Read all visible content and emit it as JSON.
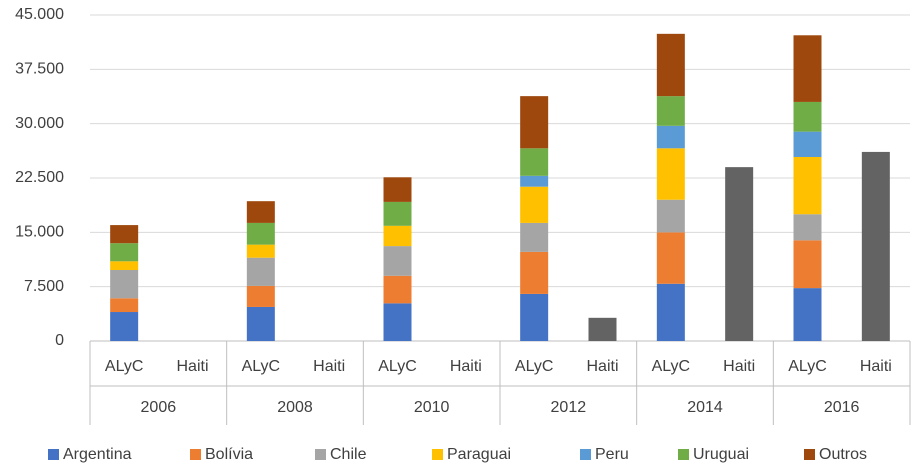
{
  "chart_data": {
    "type": "stacked_bar",
    "categories": [
      "ALyC",
      "Haiti",
      "ALyC",
      "Haiti",
      "ALyC",
      "Haiti",
      "ALyC",
      "Haiti",
      "ALyC",
      "Haiti",
      "ALyC",
      "Haiti"
    ],
    "groups": [
      "2006",
      "2008",
      "2010",
      "2012",
      "2014",
      "2016"
    ],
    "series": [
      {
        "name": "Argentina",
        "color": "#4472c4",
        "values": [
          4000,
          null,
          4700,
          null,
          5200,
          null,
          6500,
          null,
          7900,
          null,
          7300,
          null
        ]
      },
      {
        "name": "Bolívia",
        "color": "#ed7d31",
        "values": [
          1900,
          null,
          2900,
          null,
          3800,
          null,
          5800,
          null,
          7100,
          null,
          6600,
          null
        ]
      },
      {
        "name": "Chile",
        "color": "#a5a5a5",
        "values": [
          3900,
          null,
          3900,
          null,
          4100,
          null,
          4000,
          null,
          4500,
          null,
          3600,
          null
        ]
      },
      {
        "name": "Paraguai",
        "color": "#ffc000",
        "values": [
          1200,
          null,
          1800,
          null,
          2800,
          null,
          5000,
          null,
          7100,
          null,
          7900,
          null
        ]
      },
      {
        "name": "Peru",
        "color": "#5b9bd5",
        "values": [
          0,
          null,
          0,
          null,
          0,
          null,
          1500,
          null,
          3100,
          null,
          3500,
          null
        ]
      },
      {
        "name": "Uruguai",
        "color": "#70ad47",
        "values": [
          2500,
          null,
          3000,
          null,
          3300,
          null,
          3800,
          null,
          4100,
          null,
          4100,
          null
        ]
      },
      {
        "name": "Outros",
        "color": "#9e480e",
        "values": [
          2500,
          null,
          3000,
          null,
          3400,
          null,
          7200,
          null,
          8600,
          null,
          9200,
          null
        ]
      }
    ],
    "other_bars": {
      "color": "#636363",
      "values": [
        null,
        0,
        null,
        0,
        null,
        0,
        null,
        3200,
        null,
        24000,
        null,
        26100
      ]
    },
    "ylim": [
      0,
      45000
    ],
    "yticks": [
      0,
      {
        "value": 7500,
        "label": "7.500"
      },
      {
        "value": 15000,
        "label": "15.000"
      },
      {
        "value": 22500,
        "label": "22.500"
      },
      {
        "value": 30000,
        "label": "30.000"
      },
      {
        "value": 37500,
        "label": "37.500"
      },
      {
        "value": 45000,
        "label": "45.000"
      }
    ],
    "grid": true,
    "legend": "bottom"
  }
}
